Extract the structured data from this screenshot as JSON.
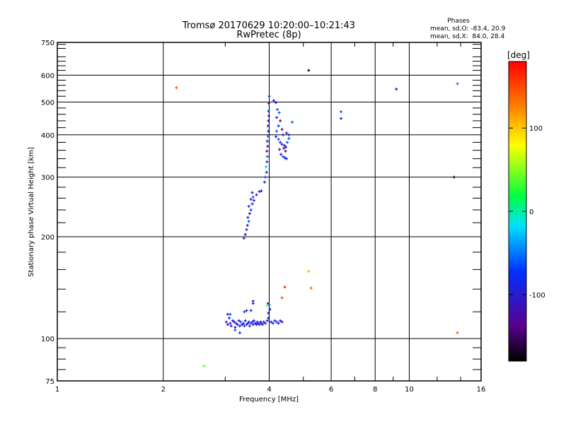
{
  "chart_data": {
    "type": "scatter",
    "title": "Tromsø 20170629 10:20:00–10:21:43",
    "subtitle": "RwPretec (8p)",
    "legend": {
      "heading": "Phases",
      "line_o": "mean, sd,O: -83.4, 20.9",
      "line_x": "mean, sd,X:  84.0, 28.4",
      "placement": "top-right"
    },
    "xlabel": "Frequency [MHz]",
    "ylabel": "Stationary phase Virtual Height [km]",
    "xscale": "log",
    "yscale": "log",
    "xlim": [
      1,
      16
    ],
    "ylim": [
      75,
      750
    ],
    "x_ticks": [
      "1",
      "2",
      "4",
      "6",
      "8",
      "10",
      "16"
    ],
    "x_tick_values": [
      1,
      2,
      4,
      6,
      8,
      10,
      16
    ],
    "y_ticks": [
      "75",
      "100",
      "200",
      "300",
      "400",
      "500",
      "600",
      "750"
    ],
    "y_tick_values": [
      75,
      100,
      200,
      300,
      400,
      500,
      600,
      750
    ],
    "grid": true,
    "colorbar": {
      "label": "[deg]",
      "range": [
        -180,
        180
      ],
      "ticks": [
        "100",
        "0",
        "-100"
      ],
      "tick_values": [
        100,
        0,
        -100
      ]
    },
    "points": [
      [
        3.02,
        112,
        -100
      ],
      [
        3.05,
        110,
        -110
      ],
      [
        3.08,
        115,
        -90
      ],
      [
        3.1,
        111,
        -100
      ],
      [
        3.12,
        109,
        -105
      ],
      [
        3.15,
        113,
        -95
      ],
      [
        3.18,
        112,
        -110
      ],
      [
        3.2,
        108,
        -100
      ],
      [
        3.22,
        111,
        -70
      ],
      [
        3.25,
        110,
        -100
      ],
      [
        3.28,
        113,
        -120
      ],
      [
        3.3,
        109,
        -100
      ],
      [
        3.32,
        112,
        -60
      ],
      [
        3.35,
        110,
        -100
      ],
      [
        3.38,
        111,
        -105
      ],
      [
        3.4,
        109,
        -95
      ],
      [
        3.42,
        113,
        -100
      ],
      [
        3.45,
        110,
        -70
      ],
      [
        3.48,
        111,
        -100
      ],
      [
        3.5,
        112,
        -110
      ],
      [
        3.52,
        109,
        -100
      ],
      [
        3.55,
        111,
        -60
      ],
      [
        3.58,
        112,
        -100
      ],
      [
        3.6,
        110,
        -100
      ],
      [
        3.62,
        113,
        -95
      ],
      [
        3.65,
        111,
        -105
      ],
      [
        3.68,
        110,
        -100
      ],
      [
        3.7,
        112,
        -70
      ],
      [
        3.72,
        111,
        -100
      ],
      [
        3.75,
        110,
        -100
      ],
      [
        3.78,
        112,
        -110
      ],
      [
        3.8,
        111,
        -100
      ],
      [
        3.83,
        110,
        -95
      ],
      [
        3.86,
        112,
        -100
      ],
      [
        3.9,
        111,
        -100
      ],
      [
        3.95,
        113,
        -105
      ],
      [
        3.98,
        115,
        -100
      ],
      [
        4.05,
        112,
        -100
      ],
      [
        4.1,
        111,
        -95
      ],
      [
        4.15,
        113,
        -100
      ],
      [
        4.2,
        112,
        -60
      ],
      [
        4.25,
        111,
        -100
      ],
      [
        4.3,
        113,
        -105
      ],
      [
        4.35,
        112,
        -100
      ],
      [
        3.2,
        106,
        -60
      ],
      [
        3.3,
        104,
        -80
      ],
      [
        3.05,
        118,
        -120
      ],
      [
        3.45,
        121,
        -110
      ],
      [
        3.55,
        121,
        -100
      ],
      [
        3.4,
        120,
        -70
      ],
      [
        3.6,
        129,
        -105
      ],
      [
        3.6,
        127,
        -100
      ],
      [
        3.1,
        118,
        -60
      ],
      [
        3.97,
        127,
        -100
      ],
      [
        4.0,
        126,
        -60
      ],
      [
        3.95,
        125,
        40
      ],
      [
        4.02,
        122,
        -70
      ],
      [
        3.98,
        119,
        -100
      ],
      [
        4.35,
        132,
        150
      ],
      [
        4.43,
        142,
        170
      ],
      [
        5.18,
        158,
        110
      ],
      [
        5.26,
        141,
        140
      ],
      [
        13.7,
        104,
        140
      ],
      [
        2.61,
        83,
        40
      ],
      [
        2.18,
        551,
        150
      ],
      [
        5.18,
        620,
        -170
      ],
      [
        6.4,
        468,
        -60
      ],
      [
        6.4,
        447,
        -90
      ],
      [
        9.19,
        546,
        -130
      ],
      [
        13.7,
        566,
        -50
      ],
      [
        13.4,
        300,
        -170
      ],
      [
        4.65,
        436,
        -60
      ],
      [
        3.39,
        198,
        -100
      ],
      [
        3.42,
        203,
        -110
      ],
      [
        3.45,
        210,
        -95
      ],
      [
        3.47,
        216,
        -100
      ],
      [
        3.5,
        222,
        -60
      ],
      [
        3.48,
        228,
        -100
      ],
      [
        3.52,
        234,
        -105
      ],
      [
        3.55,
        240,
        -70
      ],
      [
        3.5,
        246,
        -100
      ],
      [
        3.58,
        250,
        -95
      ],
      [
        3.62,
        256,
        -100
      ],
      [
        3.55,
        258,
        -110
      ],
      [
        3.6,
        262,
        -60
      ],
      [
        3.68,
        266,
        -100
      ],
      [
        3.58,
        270,
        -100
      ],
      [
        3.75,
        272,
        -105
      ],
      [
        3.8,
        273,
        -100
      ],
      [
        3.88,
        290,
        -100
      ],
      [
        3.9,
        300,
        -70
      ],
      [
        3.93,
        310,
        -100
      ],
      [
        3.92,
        322,
        -30
      ],
      [
        3.94,
        333,
        -100
      ],
      [
        3.95,
        345,
        -60
      ],
      [
        3.94,
        358,
        -140
      ],
      [
        3.96,
        370,
        -100
      ],
      [
        3.95,
        383,
        -100
      ],
      [
        3.97,
        396,
        -60
      ],
      [
        3.98,
        410,
        -100
      ],
      [
        3.97,
        425,
        -105
      ],
      [
        3.98,
        440,
        -100
      ],
      [
        3.99,
        455,
        -100
      ],
      [
        3.98,
        470,
        -60
      ],
      [
        3.99,
        495,
        -110
      ],
      [
        4.0,
        520,
        -100
      ],
      [
        4.12,
        505,
        -110
      ],
      [
        4.18,
        498,
        -100
      ],
      [
        4.22,
        475,
        -60
      ],
      [
        4.27,
        465,
        -60
      ],
      [
        4.2,
        450,
        -100
      ],
      [
        4.3,
        440,
        -120
      ],
      [
        4.25,
        425,
        -70
      ],
      [
        4.35,
        415,
        -110
      ],
      [
        4.38,
        400,
        -100
      ],
      [
        4.2,
        410,
        -60
      ],
      [
        4.48,
        405,
        -100
      ],
      [
        4.55,
        400,
        -120
      ],
      [
        4.18,
        395,
        -100
      ],
      [
        4.25,
        388,
        -60
      ],
      [
        4.3,
        380,
        -100
      ],
      [
        4.35,
        375,
        -110
      ],
      [
        4.42,
        372,
        -100
      ],
      [
        4.46,
        368,
        -130
      ],
      [
        4.5,
        380,
        -60
      ],
      [
        4.4,
        365,
        -100
      ],
      [
        4.45,
        358,
        -140
      ],
      [
        4.32,
        350,
        -100
      ],
      [
        4.38,
        345,
        -60
      ],
      [
        4.43,
        342,
        -100
      ],
      [
        4.48,
        340,
        -70
      ],
      [
        4.55,
        390,
        -60
      ],
      [
        4.28,
        362,
        -100
      ]
    ]
  }
}
